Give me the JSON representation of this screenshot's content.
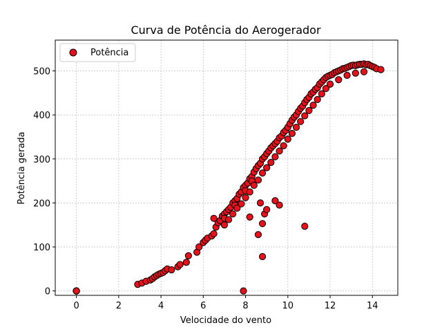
{
  "chart_data": {
    "type": "scatter",
    "title": "Curva de Potência do Aerogerador",
    "xlabel": "Velocidade do vento",
    "ylabel": "Potência gerada",
    "xlim": [
      -1,
      15.2
    ],
    "ylim": [
      -10,
      570
    ],
    "xticks": [
      0,
      2,
      4,
      6,
      8,
      10,
      12,
      14
    ],
    "yticks": [
      0,
      100,
      200,
      300,
      400,
      500
    ],
    "grid": true,
    "legend": {
      "placement": "top-left",
      "entries": [
        "Potência"
      ]
    },
    "marker_color": "#e8101a",
    "marker_edge": "#000000",
    "series": [
      {
        "name": "Potência",
        "x": [
          0,
          0,
          0,
          0,
          0,
          2.9,
          3.1,
          3.3,
          3.5,
          3.6,
          3.7,
          3.8,
          3.9,
          4.0,
          4.1,
          4.2,
          4.3,
          4.5,
          4.8,
          4.9,
          5.2,
          5.3,
          5.7,
          5.8,
          6.0,
          6.1,
          6.2,
          6.4,
          6.5,
          6.6,
          6.7,
          6.8,
          6.9,
          7.0,
          7.0,
          7.1,
          7.2,
          7.3,
          7.4,
          7.5,
          7.5,
          7.6,
          7.7,
          7.8,
          7.9,
          8.0,
          8.0,
          8.1,
          8.2,
          8.3,
          8.3,
          8.4,
          8.5,
          8.6,
          8.7,
          8.8,
          8.9,
          9.0,
          9.1,
          9.2,
          9.3,
          9.4,
          9.5,
          9.6,
          9.7,
          9.8,
          9.9,
          10.0,
          10.1,
          10.2,
          10.3,
          10.4,
          10.5,
          10.6,
          10.7,
          10.8,
          10.9,
          11.0,
          11.1,
          11.2,
          11.3,
          11.4,
          11.5,
          11.6,
          11.7,
          11.8,
          11.9,
          12.0,
          12.1,
          12.2,
          12.3,
          12.4,
          12.5,
          12.6,
          12.7,
          12.8,
          12.9,
          13.0,
          13.1,
          13.2,
          13.3,
          13.4,
          13.5,
          13.6,
          13.7,
          13.8,
          13.9,
          14.0,
          14.1,
          14.2,
          14.4,
          7.0,
          7.2,
          7.4,
          7.6,
          7.8,
          8.0,
          8.2,
          8.4,
          8.6,
          8.8,
          9.0,
          9.2,
          9.4,
          9.6,
          9.8,
          10.0,
          10.2,
          10.4,
          10.6,
          10.8,
          11.0,
          11.2,
          11.4,
          11.6,
          11.8,
          12.0,
          12.4,
          12.8,
          13.2,
          13.6,
          6.5,
          7.9,
          8.2,
          8.6,
          8.8,
          8.8,
          8.9,
          9.0,
          9.4,
          9.6,
          10.8,
          8.7
        ],
        "y": [
          0,
          0,
          0,
          0,
          0,
          15,
          18,
          22,
          25,
          28,
          32,
          35,
          38,
          40,
          42,
          46,
          50,
          48,
          55,
          60,
          65,
          80,
          88,
          100,
          110,
          115,
          120,
          125,
          130,
          145,
          155,
          160,
          170,
          175,
          165,
          180,
          185,
          190,
          200,
          205,
          195,
          210,
          220,
          225,
          235,
          240,
          228,
          245,
          255,
          260,
          250,
          270,
          278,
          285,
          290,
          300,
          305,
          312,
          318,
          325,
          330,
          335,
          340,
          348,
          352,
          360,
          365,
          372,
          380,
          388,
          395,
          400,
          408,
          415,
          420,
          428,
          435,
          440,
          448,
          452,
          458,
          462,
          470,
          475,
          480,
          485,
          488,
          490,
          492,
          496,
          498,
          500,
          502,
          505,
          506,
          508,
          510,
          512,
          513,
          512,
          514,
          515,
          515,
          516,
          514,
          515,
          512,
          510,
          508,
          505,
          503,
          150,
          162,
          175,
          188,
          198,
          212,
          225,
          240,
          252,
          268,
          280,
          292,
          305,
          318,
          330,
          345,
          358,
          372,
          385,
          398,
          410,
          422,
          435,
          448,
          460,
          470,
          480,
          490,
          495,
          498,
          165,
          0,
          168,
          128,
          78,
          153,
          175,
          185,
          205,
          195,
          147,
          200
        ]
      }
    ]
  }
}
